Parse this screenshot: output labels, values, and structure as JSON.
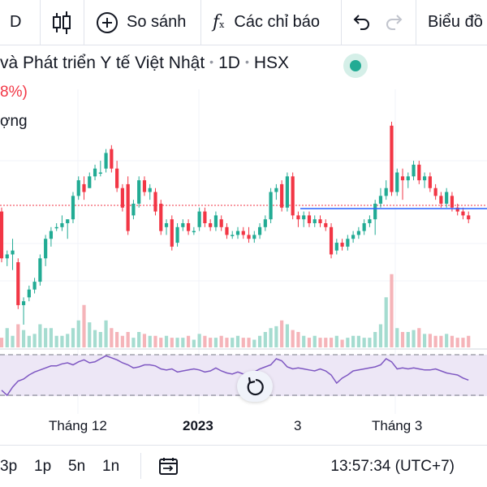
{
  "toolbar": {
    "interval": "D",
    "compare_label": "So sánh",
    "indicators_label": "Các chỉ báo",
    "chart_type_label": "Biểu đồ"
  },
  "legend": {
    "title_parts": [
      "và Phát triển Y tế Việt Nhật",
      "1D",
      "HSX"
    ],
    "change": "8%)",
    "volume_label": "ợng"
  },
  "time_axis": {
    "labels": [
      "Tháng 12",
      "2023",
      "3",
      "Tháng 3"
    ]
  },
  "bottom": {
    "ranges": [
      "3p",
      "1p",
      "5n",
      "1n"
    ],
    "time": "13:57:34 (UTC+7)"
  },
  "colors": {
    "up": "#22ab94",
    "down": "#f23645",
    "rsi": "#7e57c2",
    "price_line": "#2962ff"
  },
  "chart_data": {
    "type": "candlestick",
    "title": "",
    "xlabel": "",
    "ylabel": "",
    "candles": [
      {
        "o": 57,
        "h": 58,
        "l": 44,
        "c": 45
      },
      {
        "o": 45,
        "h": 47,
        "l": 43,
        "c": 46
      },
      {
        "o": 46,
        "h": 50,
        "l": 42,
        "c": 47
      },
      {
        "o": 44,
        "h": 45,
        "l": 32,
        "c": 33
      },
      {
        "o": 33,
        "h": 35,
        "l": 28,
        "c": 34
      },
      {
        "o": 35,
        "h": 38,
        "l": 34,
        "c": 37
      },
      {
        "o": 37,
        "h": 40,
        "l": 36,
        "c": 39
      },
      {
        "o": 39,
        "h": 46,
        "l": 38,
        "c": 45
      },
      {
        "o": 45,
        "h": 51,
        "l": 43,
        "c": 50
      },
      {
        "o": 50,
        "h": 53,
        "l": 48,
        "c": 52
      },
      {
        "o": 53,
        "h": 54,
        "l": 52,
        "c": 53
      },
      {
        "o": 53,
        "h": 56,
        "l": 52,
        "c": 54
      },
      {
        "o": 54,
        "h": 55,
        "l": 50,
        "c": 55
      },
      {
        "o": 55,
        "h": 62,
        "l": 54,
        "c": 61
      },
      {
        "o": 61,
        "h": 66,
        "l": 60,
        "c": 65
      },
      {
        "o": 64,
        "h": 66,
        "l": 60,
        "c": 62
      },
      {
        "o": 63,
        "h": 67,
        "l": 63,
        "c": 66
      },
      {
        "o": 66,
        "h": 69,
        "l": 65,
        "c": 68
      },
      {
        "o": 67,
        "h": 70,
        "l": 66,
        "c": 67
      },
      {
        "o": 68,
        "h": 73,
        "l": 67,
        "c": 72
      },
      {
        "o": 73,
        "h": 74,
        "l": 67,
        "c": 68
      },
      {
        "o": 68,
        "h": 70,
        "l": 62,
        "c": 63
      },
      {
        "o": 63,
        "h": 64,
        "l": 57,
        "c": 58
      },
      {
        "o": 64,
        "h": 66,
        "l": 51,
        "c": 52
      },
      {
        "o": 56,
        "h": 60,
        "l": 55,
        "c": 59
      },
      {
        "o": 59,
        "h": 66,
        "l": 58,
        "c": 65
      },
      {
        "o": 65,
        "h": 66,
        "l": 61,
        "c": 62
      },
      {
        "o": 62,
        "h": 64,
        "l": 60,
        "c": 63
      },
      {
        "o": 62,
        "h": 63,
        "l": 56,
        "c": 57
      },
      {
        "o": 59,
        "h": 60,
        "l": 51,
        "c": 52
      },
      {
        "o": 53,
        "h": 55,
        "l": 51,
        "c": 54
      },
      {
        "o": 55,
        "h": 56,
        "l": 47,
        "c": 48
      },
      {
        "o": 49,
        "h": 54,
        "l": 48,
        "c": 53
      },
      {
        "o": 53,
        "h": 55,
        "l": 52,
        "c": 54
      },
      {
        "o": 54,
        "h": 55,
        "l": 51,
        "c": 52
      },
      {
        "o": 52,
        "h": 53,
        "l": 51,
        "c": 52
      },
      {
        "o": 53,
        "h": 58,
        "l": 52,
        "c": 57
      },
      {
        "o": 57,
        "h": 58,
        "l": 53,
        "c": 54
      },
      {
        "o": 54,
        "h": 55,
        "l": 52,
        "c": 53
      },
      {
        "o": 53,
        "h": 57,
        "l": 52,
        "c": 56
      },
      {
        "o": 55,
        "h": 56,
        "l": 52,
        "c": 53
      },
      {
        "o": 53,
        "h": 54,
        "l": 50,
        "c": 51
      },
      {
        "o": 51,
        "h": 52,
        "l": 50,
        "c": 51
      },
      {
        "o": 51,
        "h": 53,
        "l": 50,
        "c": 52
      },
      {
        "o": 52,
        "h": 53,
        "l": 50,
        "c": 51
      },
      {
        "o": 51,
        "h": 53,
        "l": 49,
        "c": 50
      },
      {
        "o": 50,
        "h": 52,
        "l": 49,
        "c": 51
      },
      {
        "o": 51,
        "h": 54,
        "l": 50,
        "c": 53
      },
      {
        "o": 53,
        "h": 56,
        "l": 52,
        "c": 55
      },
      {
        "o": 55,
        "h": 63,
        "l": 54,
        "c": 62
      },
      {
        "o": 62,
        "h": 64,
        "l": 60,
        "c": 63
      },
      {
        "o": 64,
        "h": 65,
        "l": 57,
        "c": 58
      },
      {
        "o": 58,
        "h": 67,
        "l": 57,
        "c": 66
      },
      {
        "o": 66,
        "h": 67,
        "l": 55,
        "c": 56
      },
      {
        "o": 56,
        "h": 57,
        "l": 53,
        "c": 55
      },
      {
        "o": 55,
        "h": 57,
        "l": 53,
        "c": 56
      },
      {
        "o": 56,
        "h": 57,
        "l": 53,
        "c": 54
      },
      {
        "o": 54,
        "h": 56,
        "l": 53,
        "c": 55
      },
      {
        "o": 55,
        "h": 56,
        "l": 53,
        "c": 54
      },
      {
        "o": 54,
        "h": 55,
        "l": 52,
        "c": 53
      },
      {
        "o": 53,
        "h": 54,
        "l": 45,
        "c": 46
      },
      {
        "o": 47,
        "h": 50,
        "l": 46,
        "c": 49
      },
      {
        "o": 49,
        "h": 50,
        "l": 47,
        "c": 48
      },
      {
        "o": 48,
        "h": 51,
        "l": 47,
        "c": 50
      },
      {
        "o": 50,
        "h": 52,
        "l": 49,
        "c": 51
      },
      {
        "o": 51,
        "h": 53,
        "l": 50,
        "c": 52
      },
      {
        "o": 52,
        "h": 55,
        "l": 51,
        "c": 54
      },
      {
        "o": 54,
        "h": 56,
        "l": 53,
        "c": 55
      },
      {
        "o": 55,
        "h": 60,
        "l": 51,
        "c": 59
      },
      {
        "o": 59,
        "h": 63,
        "l": 58,
        "c": 61
      },
      {
        "o": 61,
        "h": 65,
        "l": 60,
        "c": 63
      },
      {
        "o": 79,
        "h": 80,
        "l": 61,
        "c": 62
      },
      {
        "o": 62,
        "h": 68,
        "l": 61,
        "c": 67
      },
      {
        "o": 66,
        "h": 68,
        "l": 60,
        "c": 65
      },
      {
        "o": 65,
        "h": 67,
        "l": 63,
        "c": 66
      },
      {
        "o": 66,
        "h": 70,
        "l": 65,
        "c": 69
      },
      {
        "o": 69,
        "h": 70,
        "l": 64,
        "c": 65
      },
      {
        "o": 65,
        "h": 67,
        "l": 63,
        "c": 66
      },
      {
        "o": 66,
        "h": 67,
        "l": 62,
        "c": 63
      },
      {
        "o": 63,
        "h": 64,
        "l": 60,
        "c": 61
      },
      {
        "o": 61,
        "h": 62,
        "l": 58,
        "c": 59
      },
      {
        "o": 59,
        "h": 63,
        "l": 58,
        "c": 62
      },
      {
        "o": 61,
        "h": 62,
        "l": 57,
        "c": 58
      },
      {
        "o": 58,
        "h": 59,
        "l": 56,
        "c": 57
      },
      {
        "o": 57,
        "h": 58,
        "l": 55,
        "c": 56
      },
      {
        "o": 56,
        "h": 57,
        "l": 54,
        "c": 55
      }
    ],
    "volume": [
      5,
      10,
      6,
      12,
      9,
      6,
      7,
      12,
      10,
      10,
      6,
      6,
      7,
      10,
      14,
      22,
      13,
      9,
      8,
      14,
      10,
      8,
      6,
      8,
      5,
      8,
      7,
      6,
      6,
      5,
      6,
      5,
      5,
      5,
      6,
      4,
      7,
      6,
      5,
      5,
      6,
      5,
      5,
      6,
      5,
      5,
      4,
      6,
      8,
      10,
      11,
      14,
      12,
      9,
      8,
      6,
      5,
      6,
      5,
      5,
      5,
      6,
      4,
      5,
      6,
      6,
      5,
      5,
      8,
      12,
      26,
      38,
      10,
      8,
      8,
      9,
      10,
      7,
      7,
      6,
      6,
      7,
      6,
      5,
      5,
      6
    ],
    "rsi": [
      35,
      30,
      38,
      44,
      46,
      50,
      53,
      55,
      57,
      59,
      59,
      61,
      62,
      60,
      63,
      65,
      62,
      63,
      66,
      69,
      67,
      65,
      62,
      60,
      57,
      58,
      60,
      60,
      59,
      56,
      55,
      56,
      53,
      54,
      55,
      56,
      55,
      53,
      54,
      57,
      54,
      52,
      51,
      53,
      51,
      52,
      53,
      56,
      58,
      60,
      66,
      64,
      58,
      56,
      57,
      56,
      55,
      54,
      56,
      54,
      50,
      42,
      47,
      50,
      54,
      55,
      56,
      57,
      58,
      60,
      66,
      63,
      56,
      57,
      56,
      57,
      56,
      55,
      55,
      56,
      54,
      52,
      51,
      50,
      47,
      45
    ]
  }
}
